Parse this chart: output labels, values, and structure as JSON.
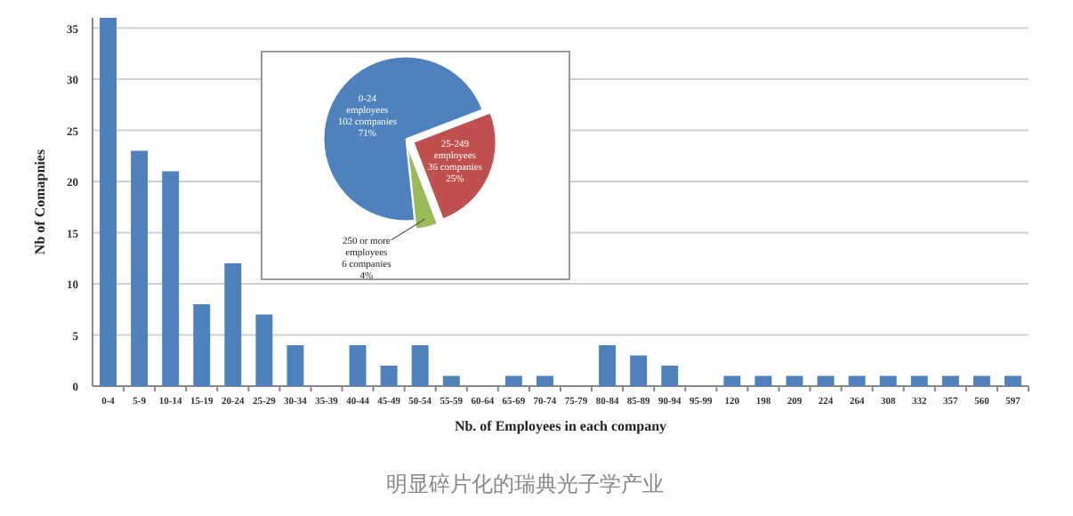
{
  "chart_data": [
    {
      "type": "bar",
      "ylabel": "Nb of Comapnies",
      "xlabel": "Nb. of Employees in each company",
      "categories": [
        "0-4",
        "5-9",
        "10-14",
        "15-19",
        "20-24",
        "25-29",
        "30-34",
        "35-39",
        "40-44",
        "45-49",
        "50-54",
        "55-59",
        "60-64",
        "65-69",
        "70-74",
        "75-79",
        "80-84",
        "85-89",
        "90-94",
        "95-99",
        "120",
        "198",
        "209",
        "224",
        "264",
        "308",
        "332",
        "357",
        "560",
        "597"
      ],
      "values": [
        36,
        23,
        21,
        8,
        12,
        7,
        4,
        0,
        4,
        2,
        4,
        1,
        0,
        1,
        1,
        0,
        4,
        3,
        2,
        0,
        1,
        1,
        1,
        1,
        1,
        1,
        1,
        1,
        1,
        1
      ],
      "color": "#4f81bd",
      "ylim": [
        0,
        36
      ],
      "yticks": [
        0,
        5,
        10,
        15,
        20,
        25,
        30,
        35
      ],
      "grid": "y",
      "annotations": [
        "明显碎片化的瑞典光子学产业"
      ]
    },
    {
      "type": "pie",
      "categories": [
        "0-24 employees",
        "25-249 employees",
        "250 or more employees"
      ],
      "values": [
        102,
        36,
        6
      ],
      "colors": [
        "#4f81bd",
        "#c0504d",
        "#9bbb59"
      ],
      "value_labels": [
        "102 companies 71%",
        "36 companies 25%",
        "6 companies 4%"
      ]
    }
  ]
}
